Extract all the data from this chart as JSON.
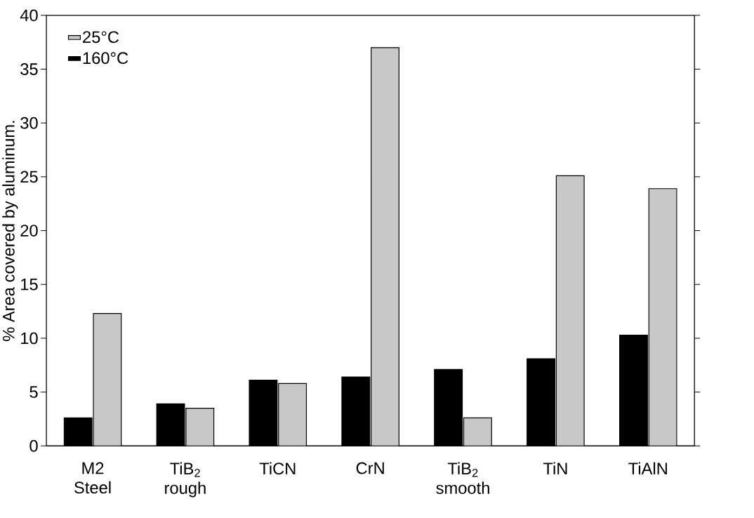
{
  "chart_data": {
    "type": "bar",
    "categories": [
      "M2 Steel",
      "TiB$_{2}$ rough",
      "TiCN",
      "CrN",
      "TiB$_{2}$ smooth",
      "TiN",
      "TiAlN"
    ],
    "series": [
      {
        "name": "160°C",
        "color": "#000000",
        "values": [
          2.6,
          3.9,
          6.1,
          6.4,
          7.1,
          8.1,
          10.3
        ]
      },
      {
        "name": "25°C",
        "color": "#c8c8c8",
        "values": [
          12.3,
          3.5,
          5.8,
          37.0,
          2.6,
          25.1,
          23.9
        ]
      }
    ],
    "ylabel": "% Area covered by aluminum.",
    "ylim": [
      0,
      40
    ],
    "yticks": [
      0,
      5,
      10,
      15,
      20,
      25,
      30,
      35,
      40
    ],
    "legend": "top left"
  }
}
